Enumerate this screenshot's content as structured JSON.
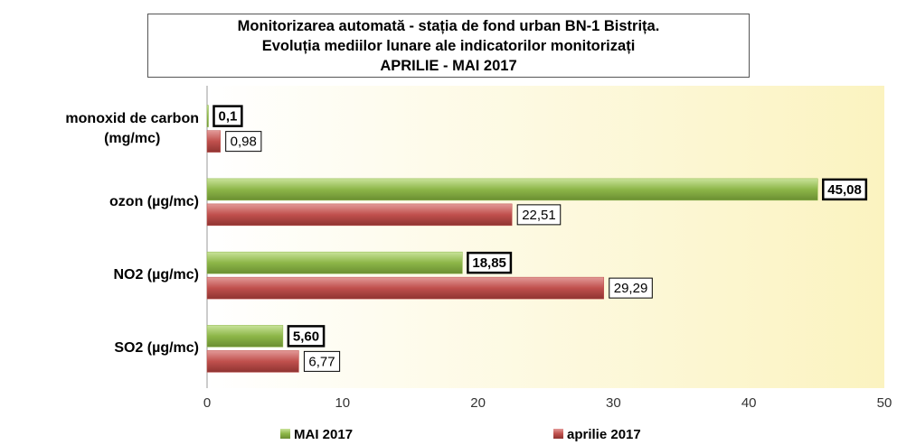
{
  "chart_data": {
    "type": "bar",
    "orientation": "horizontal",
    "title": "Monitorizarea automată - stația de fond urban BN-1 Bistrița.\nEvoluția mediilor lunare ale indicatorilor monitorizați\nAPRILIE - MAI  2017",
    "categories": [
      "monoxid de carbon\n(mg/mc)",
      "ozon (µg/mc)",
      "NO2 (µg/mc)",
      "SO2 (µg/mc)"
    ],
    "series": [
      {
        "name": "MAI 2017",
        "color": "#8db648",
        "values": [
          0.1,
          45.08,
          18.85,
          5.6
        ],
        "value_labels": [
          "0,1",
          "45,08",
          "18,85",
          "5,60"
        ]
      },
      {
        "name": "aprilie 2017",
        "color": "#c0504d",
        "values": [
          0.98,
          22.51,
          29.29,
          6.77
        ],
        "value_labels": [
          "0,98",
          "22,51",
          "29,29",
          "6,77"
        ]
      }
    ],
    "xlim": [
      0,
      50
    ],
    "xticks": [
      0,
      10,
      20,
      30,
      40,
      50
    ],
    "grid": false,
    "legend": "bottom"
  }
}
